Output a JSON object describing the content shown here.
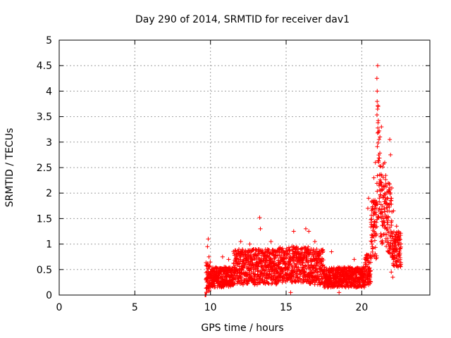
{
  "chart_data": {
    "type": "scatter",
    "title": "Day 290 of 2014, SRMTID for receiver dav1",
    "xlabel": "GPS time / hours",
    "ylabel": "SRMTID / TECUs",
    "xlim": [
      0,
      24.5
    ],
    "ylim": [
      0,
      5
    ],
    "xticks": [
      0,
      5,
      10,
      15,
      20
    ],
    "yticks": [
      0,
      0.5,
      1,
      1.5,
      2,
      2.5,
      3,
      3.5,
      4,
      4.5,
      5
    ],
    "grid": true,
    "marker": "+",
    "color": "#ff0000",
    "segments": [
      {
        "x_start": 9.65,
        "x_end": 9.7,
        "base": 0.0,
        "amp": 0.0,
        "outliers": [
          [
            9.68,
            0.0
          ]
        ]
      },
      {
        "x_start": 9.7,
        "x_end": 10.0,
        "base": 0.35,
        "amp": 0.3,
        "outliers": [
          [
            9.85,
            1.1
          ],
          [
            9.8,
            0.95
          ],
          [
            9.9,
            0.75
          ]
        ]
      },
      {
        "x_start": 10.0,
        "x_end": 11.5,
        "base": 0.35,
        "amp": 0.2,
        "outliers": [
          [
            10.8,
            0.75
          ],
          [
            11.2,
            0.7
          ]
        ]
      },
      {
        "x_start": 11.5,
        "x_end": 13.0,
        "base": 0.55,
        "amp": 0.35,
        "outliers": [
          [
            12.0,
            1.05
          ],
          [
            12.6,
            1.0
          ]
        ]
      },
      {
        "x_start": 13.0,
        "x_end": 14.5,
        "base": 0.55,
        "amp": 0.35,
        "outliers": [
          [
            13.25,
            1.52
          ],
          [
            13.3,
            1.3
          ],
          [
            14.0,
            1.05
          ]
        ]
      },
      {
        "x_start": 14.5,
        "x_end": 16.5,
        "base": 0.6,
        "amp": 0.35,
        "outliers": [
          [
            15.5,
            1.25
          ],
          [
            15.3,
            0.05
          ],
          [
            16.3,
            1.3
          ],
          [
            16.5,
            1.25
          ]
        ]
      },
      {
        "x_start": 16.5,
        "x_end": 17.5,
        "base": 0.55,
        "amp": 0.35,
        "outliers": [
          [
            16.9,
            1.05
          ]
        ]
      },
      {
        "x_start": 17.5,
        "x_end": 20.2,
        "base": 0.35,
        "amp": 0.2,
        "outliers": [
          [
            18.0,
            0.85
          ],
          [
            18.5,
            0.05
          ],
          [
            19.5,
            0.7
          ]
        ]
      },
      {
        "x_start": 20.2,
        "x_end": 20.6,
        "base": 0.5,
        "amp": 0.3,
        "outliers": [
          [
            20.4,
            1.7
          ],
          [
            20.45,
            1.9
          ]
        ]
      },
      {
        "x_start": 20.6,
        "x_end": 21.0,
        "base": 1.3,
        "amp": 0.6,
        "outliers": [
          [
            20.8,
            2.3
          ],
          [
            20.9,
            2.6
          ]
        ]
      },
      {
        "x_start": 21.0,
        "x_end": 21.2,
        "base": 2.6,
        "amp": 1.2,
        "outliers": [
          [
            21.05,
            4.5
          ],
          [
            21.0,
            4.25
          ],
          [
            21.02,
            4.0
          ],
          [
            21.08,
            3.7
          ]
        ]
      },
      {
        "x_start": 21.2,
        "x_end": 21.6,
        "base": 1.8,
        "amp": 0.8,
        "outliers": [
          [
            21.3,
            3.3
          ],
          [
            21.2,
            3.1
          ]
        ]
      },
      {
        "x_start": 21.6,
        "x_end": 22.0,
        "base": 1.5,
        "amp": 0.7,
        "outliers": [
          [
            21.85,
            3.05
          ],
          [
            21.9,
            2.75
          ]
        ]
      },
      {
        "x_start": 22.0,
        "x_end": 22.6,
        "base": 0.9,
        "amp": 0.35,
        "outliers": [
          [
            22.1,
            1.65
          ],
          [
            22.3,
            1.35
          ],
          [
            21.95,
            0.45
          ],
          [
            22.05,
            0.35
          ]
        ]
      }
    ]
  }
}
